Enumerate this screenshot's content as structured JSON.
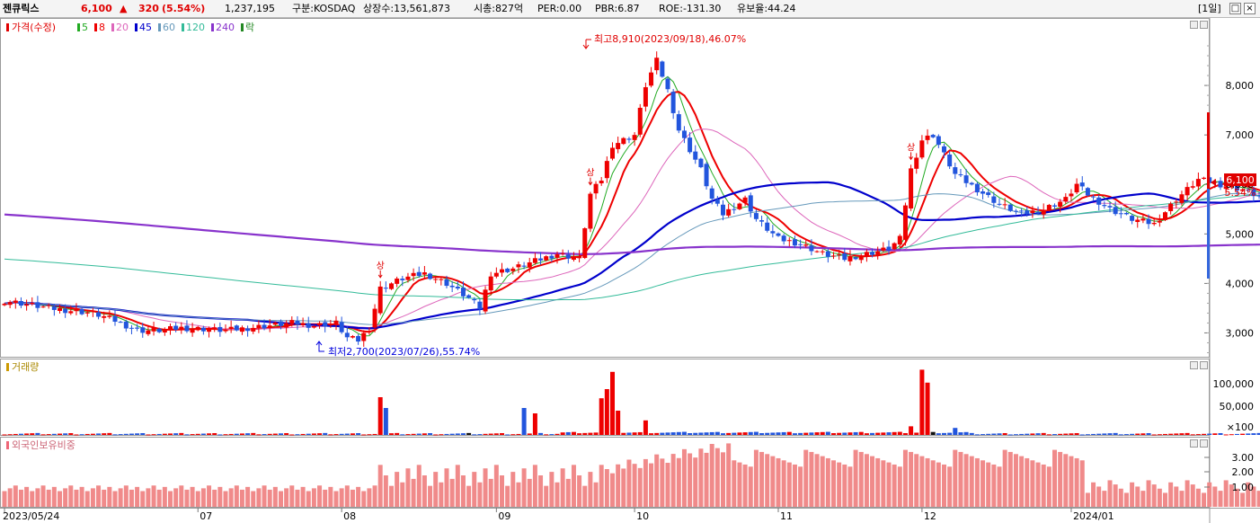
{
  "header": {
    "stock_name": "젠큐릭스",
    "price": "6,100",
    "change_symbol": "▲",
    "change": "320",
    "change_pct": "(5.54%)",
    "volume": "1,237,195",
    "market": "구분:KOSDAQ",
    "shares": "상장수:13,561,873",
    "market_cap": "시총:827억",
    "per": "PER:0.00",
    "pbr": "PBR:6.87",
    "roe": "ROE:-131.30",
    "float": "유보율:44.24",
    "period": "[1일]",
    "restore_label": "□",
    "close_label": "×"
  },
  "legend": {
    "price": "가격(수정)",
    "ma": [
      {
        "label": "5",
        "color": "#22aa22"
      },
      {
        "label": "8",
        "color": "#ee0000"
      },
      {
        "label": "20",
        "color": "#dd66bb"
      },
      {
        "label": "45",
        "color": "#0000cc"
      },
      {
        "label": "60",
        "color": "#6699bb"
      },
      {
        "label": "120",
        "color": "#33bb99"
      },
      {
        "label": "240",
        "color": "#8833cc"
      }
    ],
    "extra": "락"
  },
  "annotations": {
    "high": "최고8,910(2023/09/18),46.07%",
    "low": "최저2,700(2023/07/26),55.74%",
    "up_mark": "상"
  },
  "price_axis": {
    "ticks": [
      "8,000",
      "7,000",
      "6,000",
      "5,000",
      "4,000",
      "3,000"
    ]
  },
  "current_label": {
    "price": "6,100",
    "pct": "5.54%"
  },
  "volume_panel": {
    "title": "거래량",
    "ticks": [
      "100,000",
      "50,000",
      "×100"
    ]
  },
  "foreign_panel": {
    "title": "외국인보유비중",
    "ticks": [
      "3.00",
      "2.00",
      "1.00"
    ]
  },
  "date_axis": {
    "labels": [
      "2023/05/24",
      "07",
      "08",
      "09",
      "10",
      "11",
      "12",
      "2024/01"
    ]
  },
  "chart_data": {
    "type": "candlestick",
    "price_ylim": [
      2500,
      9000
    ],
    "volume_ylim_x100": [
      0,
      130000
    ],
    "foreign_ylim": [
      0,
      3.6
    ],
    "anchors": [
      [
        0,
        3650
      ],
      [
        3,
        3600
      ],
      [
        8,
        3500
      ],
      [
        12,
        3450
      ],
      [
        16,
        3400
      ],
      [
        20,
        3250
      ],
      [
        24,
        3050
      ],
      [
        28,
        3050
      ],
      [
        32,
        3100
      ],
      [
        36,
        3080
      ],
      [
        40,
        3050
      ],
      [
        44,
        3100
      ],
      [
        48,
        3150
      ],
      [
        52,
        3200
      ],
      [
        56,
        3150
      ],
      [
        60,
        3200
      ],
      [
        62,
        2900
      ],
      [
        64,
        2850
      ],
      [
        66,
        3100
      ],
      [
        68,
        3900
      ],
      [
        72,
        4100
      ],
      [
        76,
        4200
      ],
      [
        80,
        4000
      ],
      [
        84,
        3700
      ],
      [
        86,
        3500
      ],
      [
        88,
        4200
      ],
      [
        92,
        4300
      ],
      [
        96,
        4450
      ],
      [
        100,
        4600
      ],
      [
        104,
        4500
      ],
      [
        106,
        5800
      ],
      [
        108,
        6100
      ],
      [
        110,
        6800
      ],
      [
        114,
        7000
      ],
      [
        116,
        8000
      ],
      [
        118,
        8500
      ],
      [
        120,
        7900
      ],
      [
        122,
        7100
      ],
      [
        126,
        6300
      ],
      [
        128,
        5700
      ],
      [
        130,
        5400
      ],
      [
        134,
        5700
      ],
      [
        136,
        5300
      ],
      [
        140,
        4900
      ],
      [
        144,
        4800
      ],
      [
        148,
        4600
      ],
      [
        152,
        4500
      ],
      [
        156,
        4600
      ],
      [
        160,
        4700
      ],
      [
        162,
        4900
      ],
      [
        164,
        6300
      ],
      [
        166,
        6900
      ],
      [
        168,
        7000
      ],
      [
        172,
        6200
      ],
      [
        176,
        5900
      ],
      [
        180,
        5600
      ],
      [
        184,
        5400
      ],
      [
        188,
        5500
      ],
      [
        192,
        5700
      ],
      [
        194,
        6000
      ],
      [
        196,
        5800
      ],
      [
        200,
        5500
      ],
      [
        204,
        5300
      ],
      [
        208,
        5200
      ],
      [
        212,
        5700
      ],
      [
        216,
        6100
      ],
      [
        220,
        6000
      ],
      [
        224,
        5900
      ],
      [
        228,
        5700
      ],
      [
        232,
        6100
      ]
    ],
    "last_price": 6100,
    "spike_vol": {
      "68": 70000,
      "69": 50000,
      "94": 50000,
      "96": 40000,
      "108": 68000,
      "109": 85000,
      "110": 117000,
      "111": 45000,
      "116": 27000,
      "164": 16000,
      "166": 121000,
      "167": 97000,
      "172": 13000
    }
  }
}
